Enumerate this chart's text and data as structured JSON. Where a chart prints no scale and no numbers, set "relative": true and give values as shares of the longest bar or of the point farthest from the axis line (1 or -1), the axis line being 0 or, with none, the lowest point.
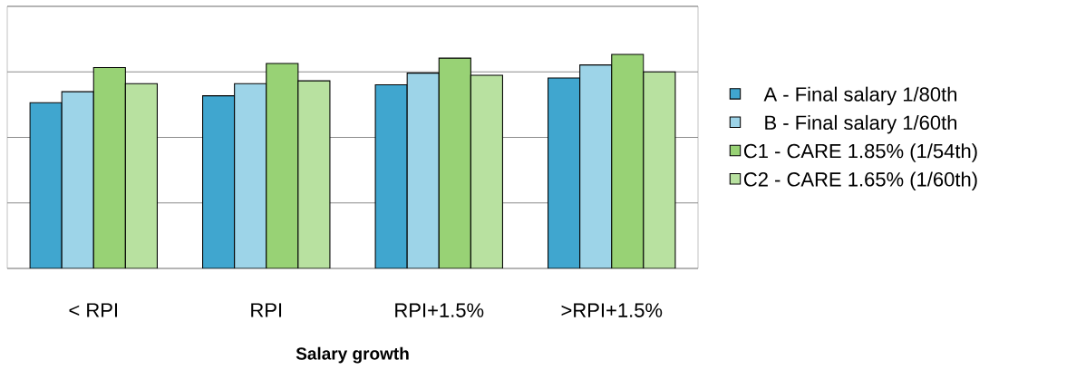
{
  "chart_data": {
    "type": "bar",
    "xlabel": "**Salary growth**",
    "relative": true,
    "grid": "y",
    "legend": "right",
    "categories": [
      "< RPI",
      "RPI",
      "RPI+1.5%",
      ">RPI+1.5%"
    ],
    "series": [
      {
        "name": "A - Final salary 1/80th",
        "color": "#40a6cf",
        "values": [
          0.775,
          0.807,
          0.858,
          0.89
        ]
      },
      {
        "name": "B - Final salary 1/60th",
        "color": "#9dd4e8",
        "values": [
          0.826,
          0.864,
          0.913,
          0.951
        ]
      },
      {
        "name": "C1 - CARE 1.85% (1/54th)",
        "color": "#98d275",
        "values": [
          0.939,
          0.958,
          0.983,
          1.0
        ]
      },
      {
        "name": "C2 - CARE 1.65% (1/60th)",
        "color": "#b8e1a0",
        "values": [
          0.864,
          0.877,
          0.903,
          0.919
        ]
      }
    ]
  }
}
